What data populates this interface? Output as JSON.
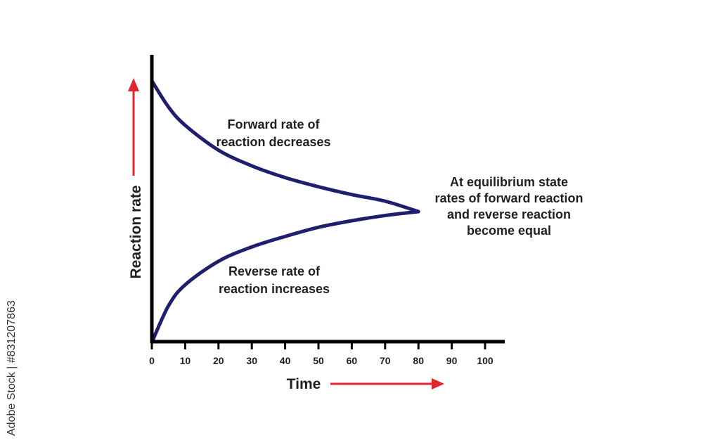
{
  "side_credit": "Adobe Stock | #831207863",
  "colors": {
    "curve": "#1f1f6e",
    "arrow": "#e0262c",
    "axis": "#000000",
    "text": "#231f20"
  },
  "chart_data": {
    "type": "line",
    "xlabel": "Time",
    "ylabel": "Reaction rate",
    "xlim": [
      0,
      100
    ],
    "xticks": [
      0,
      10,
      20,
      30,
      40,
      50,
      60,
      70,
      80,
      90,
      100
    ],
    "grid": false,
    "series": [
      {
        "x": [
          0,
          5,
          10,
          20,
          30,
          40,
          50,
          60,
          70,
          80
        ],
        "y": [
          1.0,
          0.8,
          0.66,
          0.47,
          0.35,
          0.26,
          0.19,
          0.13,
          0.08,
          0.0
        ]
      },
      {
        "x": [
          0,
          5,
          10,
          20,
          30,
          40,
          50,
          60,
          70,
          80
        ],
        "y": [
          -1.0,
          -0.72,
          -0.56,
          -0.38,
          -0.27,
          -0.19,
          -0.12,
          -0.07,
          -0.03,
          0.0
        ]
      }
    ],
    "annotations": [
      {
        "id": "forward",
        "lines": [
          "Forward rate of",
          "reaction decreases"
        ]
      },
      {
        "id": "reverse",
        "lines": [
          "Reverse rate of",
          "reaction increases"
        ]
      },
      {
        "id": "equilibrium",
        "lines": [
          "At equilibrium state",
          "rates of forward reaction",
          "and reverse reaction",
          "become equal"
        ]
      }
    ]
  }
}
